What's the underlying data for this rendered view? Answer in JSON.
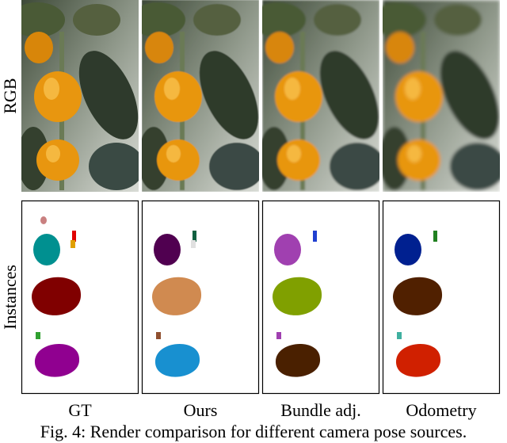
{
  "figure": {
    "row_labels": [
      "RGB",
      "Instances"
    ],
    "columns": [
      "GT",
      "Ours",
      "Bundle adj.",
      "Odometry"
    ],
    "caption": "Fig. 4: Render comparison for different camera pose sources."
  }
}
